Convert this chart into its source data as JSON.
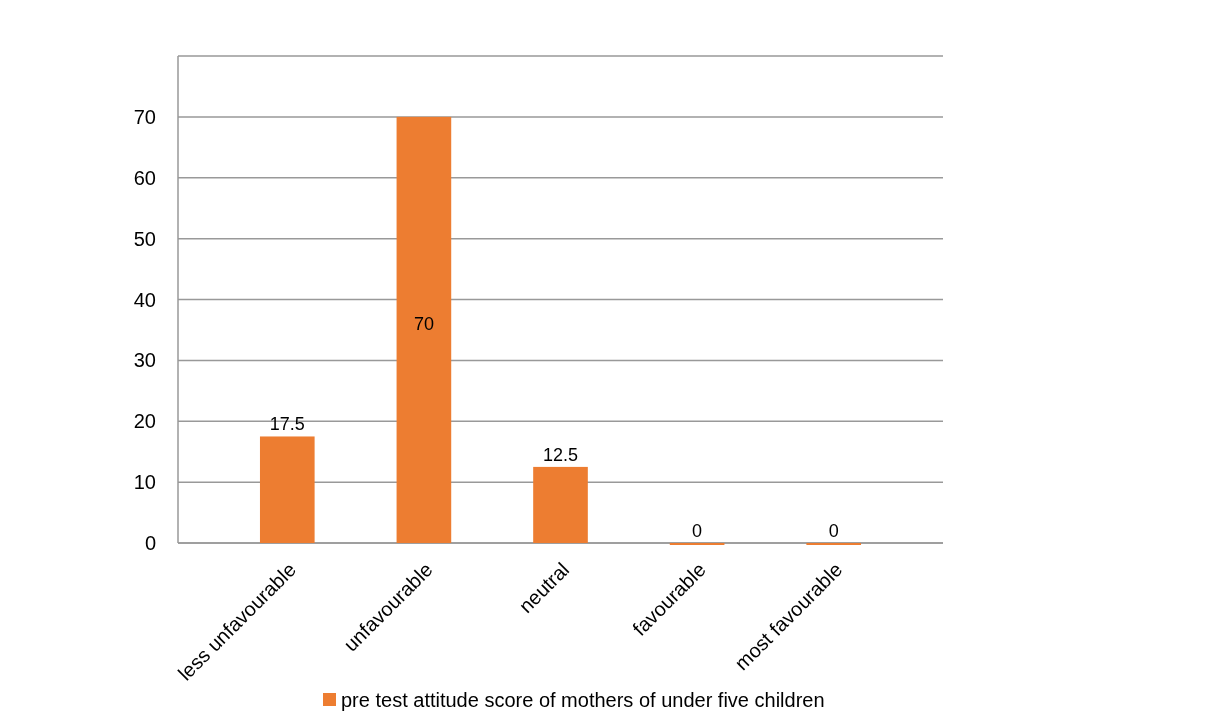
{
  "chart_data": {
    "type": "bar",
    "categories": [
      "less unfavourable",
      "unfavourable",
      "neutral",
      "favourable",
      "most favourable"
    ],
    "series": [
      {
        "name": "pre test attitude score of mothers of under five children",
        "color": "#ed7d31",
        "values": [
          17.5,
          70,
          12.5,
          0,
          0
        ]
      }
    ],
    "ylim": [
      0,
      80
    ],
    "yticks": [
      0,
      10,
      20,
      30,
      40,
      50,
      60,
      70
    ],
    "grid": "y",
    "legend": "bottom",
    "data_labels": true
  }
}
